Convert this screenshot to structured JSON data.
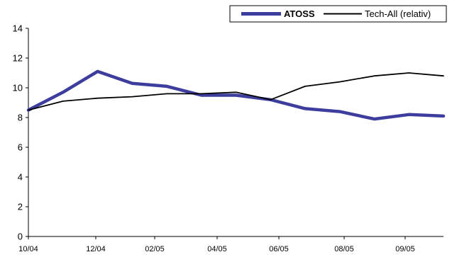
{
  "chart_data": {
    "type": "line",
    "title": "",
    "xlabel": "",
    "ylabel": "",
    "ylim": [
      0,
      14
    ],
    "yticks": [
      0,
      2,
      4,
      6,
      8,
      10,
      12,
      14
    ],
    "x_tick_labels": [
      "10/04",
      "12/04",
      "02/05",
      "04/05",
      "06/05",
      "08/05",
      "09/05"
    ],
    "x": [
      "10/04",
      "11/04",
      "12/04",
      "01/05",
      "02/05",
      "03/05",
      "04/05",
      "05/05",
      "06/05",
      "07/05",
      "08/05",
      "09/05",
      "10/05"
    ],
    "grid": false,
    "legend_position": "top-right",
    "series": [
      {
        "name": "ATOSS",
        "color": "#3d3d9e",
        "values": [
          8.5,
          9.7,
          11.1,
          10.3,
          10.1,
          9.5,
          9.5,
          9.2,
          8.6,
          8.4,
          7.9,
          8.2,
          8.1
        ]
      },
      {
        "name": "Tech-All (relativ)",
        "color": "#000000",
        "values": [
          8.5,
          9.1,
          9.3,
          9.4,
          9.6,
          9.6,
          9.7,
          9.2,
          10.1,
          10.4,
          10.8,
          11.0,
          10.8
        ]
      }
    ]
  }
}
